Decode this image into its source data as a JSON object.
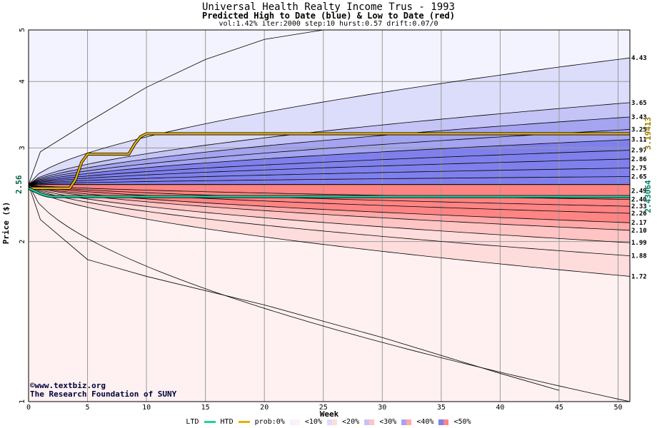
{
  "header": {
    "title": "Universal Health Realty Income Trus - 1993",
    "subtitle": "Predicted High to Date (blue) &  Low to Date (red)",
    "params": "vol:1.42% iter:2000 step:10 hurst:0.57 drift:0.07/0"
  },
  "credits": {
    "line1": "©www.textbiz.org",
    "line2": "The Research Foundation of SUNY"
  },
  "legend": {
    "ltd": "LTD",
    "htd": "HTD",
    "prob_prefix": "prob:0%",
    "bands": [
      "<10%",
      "<20%",
      "<30%",
      "<40%",
      "<50%"
    ]
  },
  "colors": {
    "htd_line": "#e8b000",
    "ltd_line": "#20d0a0",
    "blue_bands": [
      "#f3f3ff",
      "#dcdcfb",
      "#c4c4f6",
      "#a4a4f1",
      "#8080ec"
    ],
    "red_bands": [
      "#fff1f1",
      "#ffdcdc",
      "#ffc4c4",
      "#ffa8a8",
      "#ff8484"
    ],
    "grid": "#9a9a9a"
  },
  "chart_data": {
    "type": "area",
    "title": "Universal Health Realty Income Trus - 1993",
    "xlabel": "Week",
    "ylabel": "Price ($)",
    "xlim": [
      0,
      51
    ],
    "ylim": [
      1,
      5
    ],
    "y_scale": "log",
    "grid": true,
    "x_ticks": [
      0,
      5,
      10,
      15,
      20,
      25,
      30,
      35,
      40,
      45,
      50
    ],
    "y_ticks": [
      1,
      2,
      3,
      4,
      5
    ],
    "start_price": 2.56,
    "start_label": "2.56",
    "high_quantile_ends": [
      4.43,
      3.65,
      3.43,
      3.25,
      3.11,
      2.97,
      2.86,
      2.75,
      2.65,
      2.56
    ],
    "high_quantile_labels": [
      "4.43",
      "3.65",
      "3.43",
      "3.25",
      "3.11",
      "2.97",
      "2.86",
      "2.75",
      "2.65"
    ],
    "mid_labels": [
      "2.49",
      "2.40"
    ],
    "low_quantile_ends": [
      2.56,
      2.4,
      2.33,
      2.26,
      2.17,
      2.1,
      1.99,
      1.88,
      1.72,
      1.0
    ],
    "low_quantile_labels": [
      "2.33",
      "2.26",
      "2.17",
      "2.10",
      "1.99",
      "1.88",
      "1.72"
    ],
    "outer_high_path": {
      "x": [
        0,
        1,
        5,
        10,
        15,
        20,
        25
      ],
      "y": [
        2.56,
        2.95,
        3.35,
        3.9,
        4.4,
        4.8,
        5.0
      ]
    },
    "outer_low_path": {
      "x": [
        0,
        1,
        5,
        10,
        20,
        30,
        40,
        45
      ],
      "y": [
        2.56,
        2.2,
        1.85,
        1.72,
        1.52,
        1.32,
        1.13,
        1.05
      ]
    },
    "series": [
      {
        "name": "HTD",
        "x": [
          0,
          3.5,
          4,
          4.5,
          5,
          8.5,
          9,
          9.5,
          10,
          51
        ],
        "y": [
          2.52,
          2.52,
          2.62,
          2.82,
          2.92,
          2.92,
          3.05,
          3.15,
          3.19,
          3.19
        ]
      },
      {
        "name": "LTD",
        "x": [
          0,
          1,
          1.5,
          2,
          51
        ],
        "y": [
          2.52,
          2.46,
          2.44,
          2.43,
          2.43
        ]
      }
    ],
    "final_labels": {
      "htd": "3.19413",
      "ltd": "2.43064"
    }
  }
}
